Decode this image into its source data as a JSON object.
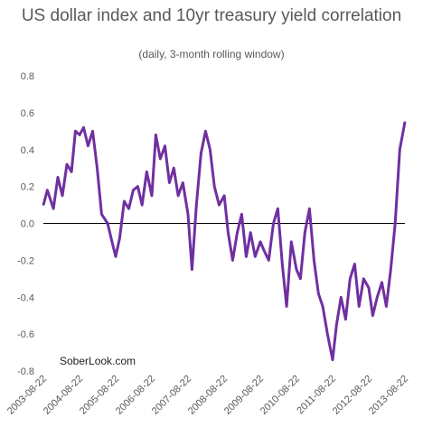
{
  "chart_data": {
    "type": "line",
    "title": "US dollar index and 10yr treasury yield correlation",
    "subtitle": "(daily, 3-month rolling window)",
    "watermark": "SoberLook.com",
    "xlabel": "",
    "ylabel": "",
    "ylim": [
      -0.8,
      0.8
    ],
    "yticks": [
      "0.8",
      "0.6",
      "0.4",
      "0.2",
      "0.0",
      "-0.2",
      "-0.4",
      "-0.6",
      "-0.8"
    ],
    "x_tick_labels": [
      "2003-08-22",
      "2004-08-22",
      "2005-08-22",
      "2006-08-22",
      "2007-08-22",
      "2008-08-22",
      "2009-08-22",
      "2010-08-22",
      "2011-08-22",
      "2012-08-22",
      "2013-08-22"
    ],
    "grid": false,
    "series": [
      {
        "color": "#7030a0",
        "x": [
          "2003-08-22",
          "2003-10-01",
          "2003-12-01",
          "2004-01-15",
          "2004-03-01",
          "2004-04-15",
          "2004-06-01",
          "2004-07-10",
          "2004-08-22",
          "2004-10-01",
          "2004-11-15",
          "2005-01-01",
          "2005-02-15",
          "2005-04-01",
          "2005-06-01",
          "2005-07-15",
          "2005-08-22",
          "2005-10-01",
          "2005-11-15",
          "2006-01-01",
          "2006-02-15",
          "2006-04-01",
          "2006-05-15",
          "2006-07-01",
          "2006-08-22",
          "2006-10-01",
          "2006-11-15",
          "2007-01-01",
          "2007-02-15",
          "2007-04-01",
          "2007-05-15",
          "2007-07-01",
          "2007-08-22",
          "2007-10-01",
          "2007-11-15",
          "2008-01-01",
          "2008-02-15",
          "2008-04-01",
          "2008-05-15",
          "2008-07-01",
          "2008-08-22",
          "2008-10-01",
          "2008-11-15",
          "2009-01-01",
          "2009-02-15",
          "2009-04-01",
          "2009-05-15",
          "2009-07-01",
          "2009-08-22",
          "2009-10-01",
          "2009-11-15",
          "2010-01-01",
          "2010-02-15",
          "2010-04-01",
          "2010-05-15",
          "2010-07-01",
          "2010-08-22",
          "2010-10-01",
          "2010-11-15",
          "2011-01-01",
          "2011-02-15",
          "2011-04-01",
          "2011-05-15",
          "2011-07-01",
          "2011-08-22",
          "2011-10-01",
          "2011-11-15",
          "2012-01-01",
          "2012-02-15",
          "2012-04-01",
          "2012-05-15",
          "2012-07-01",
          "2012-08-22",
          "2012-10-01",
          "2012-11-15",
          "2013-01-01",
          "2013-02-15",
          "2013-04-01",
          "2013-05-15",
          "2013-07-01",
          "2013-08-22"
        ],
        "values": [
          0.1,
          0.18,
          0.08,
          0.25,
          0.15,
          0.32,
          0.28,
          0.5,
          0.48,
          0.52,
          0.42,
          0.5,
          0.3,
          0.05,
          0.0,
          -0.1,
          -0.18,
          -0.08,
          0.12,
          0.08,
          0.18,
          0.2,
          0.1,
          0.28,
          0.15,
          0.48,
          0.35,
          0.42,
          0.22,
          0.3,
          0.15,
          0.22,
          0.05,
          -0.25,
          0.1,
          0.38,
          0.5,
          0.4,
          0.2,
          0.1,
          0.15,
          -0.05,
          -0.2,
          -0.05,
          0.05,
          -0.18,
          -0.05,
          -0.18,
          -0.1,
          -0.15,
          -0.2,
          0.0,
          0.08,
          -0.22,
          -0.45,
          -0.1,
          -0.25,
          -0.3,
          -0.05,
          0.08,
          -0.2,
          -0.38,
          -0.45,
          -0.6,
          -0.74,
          -0.55,
          -0.4,
          -0.52,
          -0.3,
          -0.22,
          -0.45,
          -0.3,
          -0.35,
          -0.5,
          -0.4,
          -0.32,
          -0.45,
          -0.25,
          0.0,
          0.4,
          0.55
        ]
      }
    ]
  }
}
